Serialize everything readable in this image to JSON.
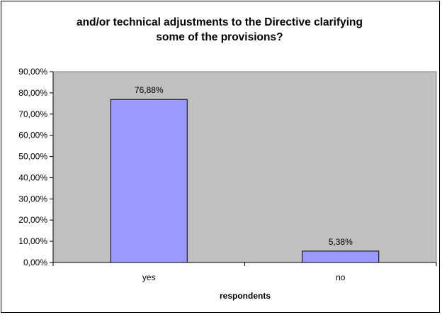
{
  "chart_data": {
    "type": "bar",
    "title_lines": [
      "and/or technical adjustments to the Directive clarifying",
      "some of the provisions?"
    ],
    "xlabel": "respondents",
    "ylabel": "",
    "categories": [
      "yes",
      "no"
    ],
    "values": [
      76.88,
      5.38
    ],
    "value_labels": [
      "76,88%",
      "5,38%"
    ],
    "ylim": [
      0,
      90
    ],
    "yticks": [
      0,
      10,
      20,
      30,
      40,
      50,
      60,
      70,
      80,
      90
    ],
    "ytick_labels": [
      "0,00%",
      "10,00%",
      "20,00%",
      "30,00%",
      "40,00%",
      "50,00%",
      "60,00%",
      "70,00%",
      "80,00%",
      "90,00%"
    ],
    "grid": false,
    "legend": "none",
    "colors": {
      "bar_fill": "#9999ff",
      "plot_background": "#c0c0c0",
      "frame": "#000000"
    }
  }
}
